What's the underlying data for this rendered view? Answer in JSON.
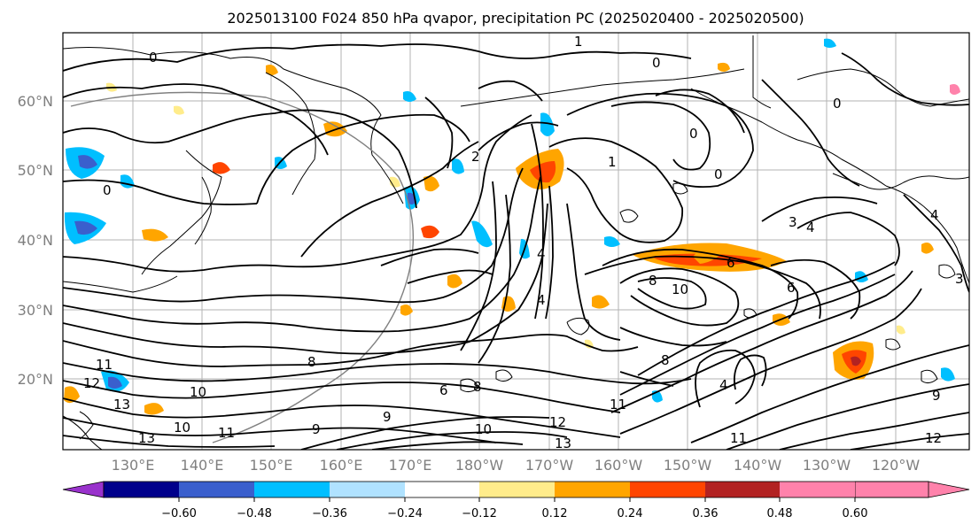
{
  "title": "2025013100 F024 850 hPa qvapor, precipitation PC (2025020400 - 2025020500)",
  "lat_labels": [
    "60°N",
    "50°N",
    "40°N",
    "30°N",
    "20°N"
  ],
  "lon_labels": [
    "130°E",
    "140°E",
    "150°E",
    "160°E",
    "170°E",
    "180°W",
    "170°W",
    "160°W",
    "150°W",
    "140°W",
    "130°W",
    "120°W"
  ],
  "colorbar": {
    "ticks": [
      "−0.60",
      "−0.48",
      "−0.36",
      "−0.24",
      "−0.12",
      "0.12",
      "0.24",
      "0.36",
      "0.48",
      "0.60"
    ],
    "colors": [
      "#9932cc",
      "#00008b",
      "#3a5fcd",
      "#00bfff",
      "#b0e2ff",
      "#ffffff",
      "#ffec8b",
      "#ffa500",
      "#ff4500",
      "#b22222",
      "#ff82ab"
    ]
  },
  "contour_labels": [
    "0",
    "1",
    "0",
    "0",
    "0",
    "0",
    "1",
    "2",
    "0",
    "3",
    "4",
    "4",
    "4",
    "4",
    "6",
    "8",
    "10",
    "6",
    "8",
    "9",
    "10",
    "11",
    "12",
    "13",
    "11",
    "13",
    "10",
    "9",
    "8",
    "10",
    "11",
    "12",
    "13",
    "11",
    "12",
    "8",
    "3",
    "4",
    "6",
    "9"
  ]
}
